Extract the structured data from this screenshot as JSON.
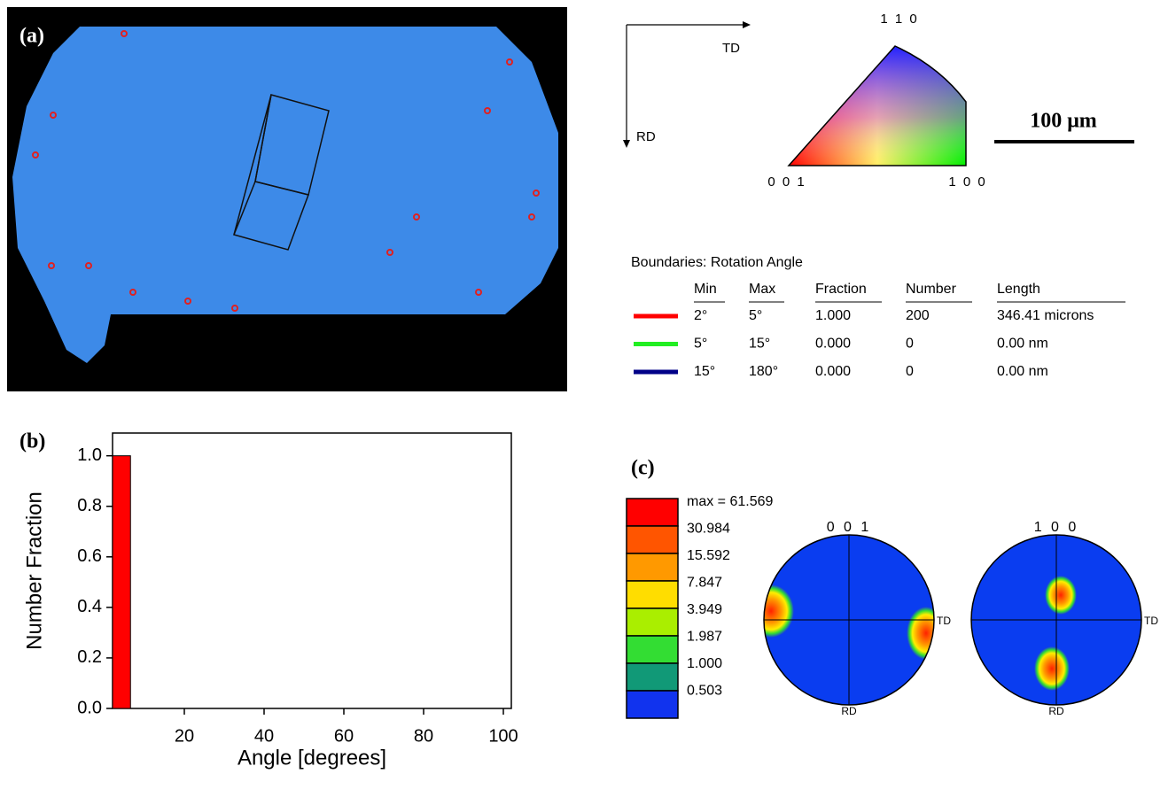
{
  "panel_a": {
    "label": "(a)",
    "directions": {
      "td": "TD",
      "rd": "RD"
    },
    "ipf": {
      "top": "1 1 0",
      "left": "0 0 1",
      "right": "1 0 0"
    },
    "scale_bar": "100 μm"
  },
  "boundaries": {
    "title": "Boundaries: Rotation Angle",
    "columns": [
      "Min",
      "Max",
      "Fraction",
      "Number",
      "Length"
    ],
    "rows": [
      {
        "color": "#ff0000",
        "cells": [
          "2°",
          "5°",
          "1.000",
          "200",
          "346.41 microns"
        ]
      },
      {
        "color": "#22ee22",
        "cells": [
          "5°",
          "15°",
          "0.000",
          "0",
          "0.00 nm"
        ]
      },
      {
        "color": "#000088",
        "cells": [
          "15°",
          "180°",
          "0.000",
          "0",
          "0.00 nm"
        ]
      }
    ]
  },
  "chart_data": {
    "type": "histogram",
    "label": "(b)",
    "x_label": "Angle [degrees]",
    "y_label": "Number Fraction",
    "bins": [
      2,
      6.5
    ],
    "values": [
      1.0
    ],
    "color": "#ff0000",
    "xlim": [
      2,
      102
    ],
    "xticks": [
      20,
      40,
      60,
      80,
      100
    ],
    "ylim": [
      0,
      1.09
    ],
    "yticks": [
      {
        "value": 0,
        "label": "0.0"
      },
      {
        "value": 0.2,
        "label": "0.2"
      },
      {
        "value": 0.4,
        "label": "0.4"
      },
      {
        "value": 0.6,
        "label": "0.6"
      },
      {
        "value": 0.8,
        "label": "0.8"
      },
      {
        "value": 1,
        "label": "1.0"
      }
    ]
  },
  "panel_c": {
    "label": "(c)",
    "legend": [
      {
        "color": "#ff0000",
        "label": "max = 61.569"
      },
      {
        "color": "#ff5500",
        "label": "30.984"
      },
      {
        "color": "#ff9900",
        "label": "15.592"
      },
      {
        "color": "#ffdd00",
        "label": "7.847"
      },
      {
        "color": "#aaee00",
        "label": "3.949"
      },
      {
        "color": "#33dd33",
        "label": "1.987"
      },
      {
        "color": "#119977",
        "label": "1.000"
      },
      {
        "color": "#1133ee",
        "label": "0.503"
      }
    ],
    "pole_figures": [
      {
        "title": "0 0 1",
        "td": "TD",
        "rd": "RD"
      },
      {
        "title": "1 0 0",
        "td": "TD",
        "rd": "RD"
      }
    ]
  }
}
